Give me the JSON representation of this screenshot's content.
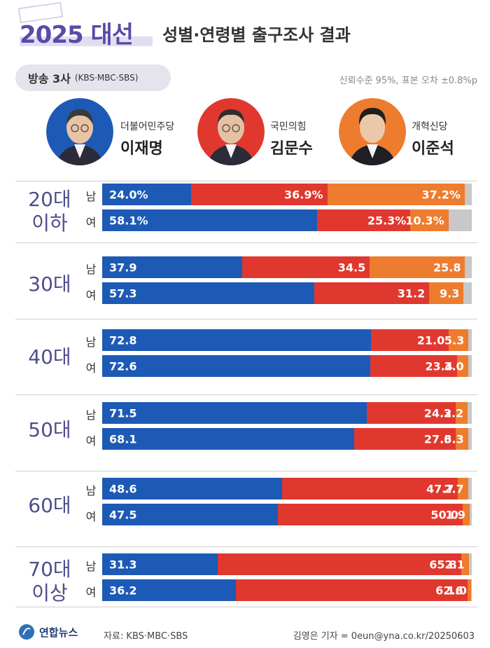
{
  "header": {
    "year": "2025 대선",
    "subtitle": "성별·연령별 출구조사 결과"
  },
  "broadcast": {
    "label": "방송 3사",
    "networks": "(KBS·MBC·SBS)"
  },
  "confidence": "신뢰수준 95%, 표본 오차 ±0.8%p",
  "candidates": [
    {
      "party": "더불어민주당",
      "name": "이재명",
      "color": "#1d5ab6",
      "bg": "#1d5ab6"
    },
    {
      "party": "국민의힘",
      "name": "김문수",
      "color": "#e0382e",
      "bg": "#e0382e"
    },
    {
      "party": "개혁신당",
      "name": "이준석",
      "color": "#ee7c2e",
      "bg": "#ee7c2e"
    }
  ],
  "colors": {
    "blue": "#1d5ab6",
    "red": "#e0382e",
    "orange": "#ee7c2e",
    "other": "#c8c8c8"
  },
  "chart_data": {
    "type": "bar",
    "stacked": true,
    "orientation": "horizontal",
    "series_names": [
      "이재명",
      "김문수",
      "이준석"
    ],
    "groups": [
      {
        "age": "20대 이하",
        "age_lines": [
          "20대",
          "이하"
        ],
        "rows": [
          {
            "sex": "남",
            "values": [
              24.0,
              36.9,
              37.2
            ],
            "labels": [
              "24.0%",
              "36.9%",
              "37.2%"
            ]
          },
          {
            "sex": "여",
            "values": [
              58.1,
              25.3,
              10.3
            ],
            "labels": [
              "58.1%",
              "25.3%",
              "10.3%"
            ]
          }
        ]
      },
      {
        "age": "30대",
        "age_lines": [
          "30대"
        ],
        "rows": [
          {
            "sex": "남",
            "values": [
              37.9,
              34.5,
              25.8
            ],
            "labels": [
              "37.9",
              "34.5",
              "25.8"
            ]
          },
          {
            "sex": "여",
            "values": [
              57.3,
              31.2,
              9.3
            ],
            "labels": [
              "57.3",
              "31.2",
              "9.3"
            ]
          }
        ]
      },
      {
        "age": "40대",
        "age_lines": [
          "40대"
        ],
        "rows": [
          {
            "sex": "남",
            "values": [
              72.8,
              21.0,
              5.3
            ],
            "labels": [
              "72.8",
              "21.0",
              "5.3"
            ]
          },
          {
            "sex": "여",
            "values": [
              72.6,
              23.4,
              3.0
            ],
            "labels": [
              "72.6",
              "23.4",
              "3.0"
            ]
          }
        ]
      },
      {
        "age": "50대",
        "age_lines": [
          "50대"
        ],
        "rows": [
          {
            "sex": "남",
            "values": [
              71.5,
              24.2,
              3.2
            ],
            "labels": [
              "71.5",
              "24.2",
              "3.2"
            ]
          },
          {
            "sex": "여",
            "values": [
              68.1,
              27.6,
              3.3
            ],
            "labels": [
              "68.1",
              "27.6",
              "3.3"
            ]
          }
        ]
      },
      {
        "age": "60대",
        "age_lines": [
          "60대"
        ],
        "rows": [
          {
            "sex": "남",
            "values": [
              48.6,
              47.7,
              2.7
            ],
            "labels": [
              "48.6",
              "47.7",
              "2.7"
            ]
          },
          {
            "sex": "여",
            "values": [
              47.5,
              50.0,
              1.9
            ],
            "labels": [
              "47.5",
              "50.0",
              "1.9"
            ]
          }
        ]
      },
      {
        "age": "70대 이상",
        "age_lines": [
          "70대",
          "이상"
        ],
        "rows": [
          {
            "sex": "남",
            "values": [
              31.3,
              65.8,
              2.1
            ],
            "labels": [
              "31.3",
              "65.8",
              "2.1"
            ]
          },
          {
            "sex": "여",
            "values": [
              36.2,
              62.6,
              1.0
            ],
            "labels": [
              "36.2",
              "62.6",
              "1.0"
            ]
          }
        ]
      }
    ]
  },
  "footer": {
    "logo": "연합뉴스",
    "source": "자료: KBS·MBC·SBS",
    "credit": "김영은 기자 = 0eun@yna.co.kr/20250603"
  }
}
